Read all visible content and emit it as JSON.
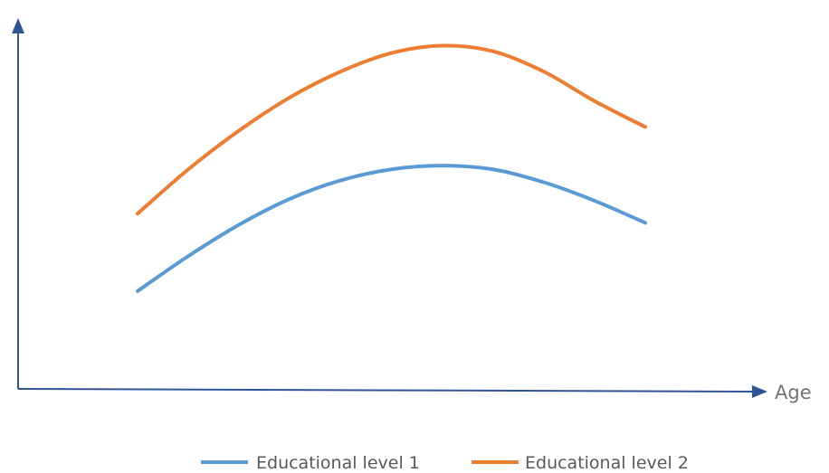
{
  "chart_data": {
    "type": "line",
    "title": "",
    "xlabel": "Age",
    "ylabel": "",
    "xlim": [
      0,
      10
    ],
    "ylim": [
      0,
      10
    ],
    "grid": false,
    "legend_position": "bottom",
    "series": [
      {
        "name": "Educational level 1",
        "color": "#5b9bd5",
        "x": [
          0,
          1,
          2,
          3,
          4,
          5,
          6,
          7,
          8,
          9,
          10
        ],
        "y": [
          2.65,
          3.6,
          4.45,
          5.15,
          5.65,
          5.95,
          6.05,
          5.95,
          5.6,
          5.1,
          4.5
        ]
      },
      {
        "name": "Educational level 2",
        "color": "#ed7d31",
        "x": [
          0,
          1,
          2,
          3,
          4,
          5,
          6,
          7,
          8,
          9,
          10
        ],
        "y": [
          4.75,
          5.95,
          7.0,
          7.9,
          8.6,
          9.1,
          9.3,
          9.15,
          8.6,
          7.8,
          7.1
        ]
      }
    ]
  }
}
